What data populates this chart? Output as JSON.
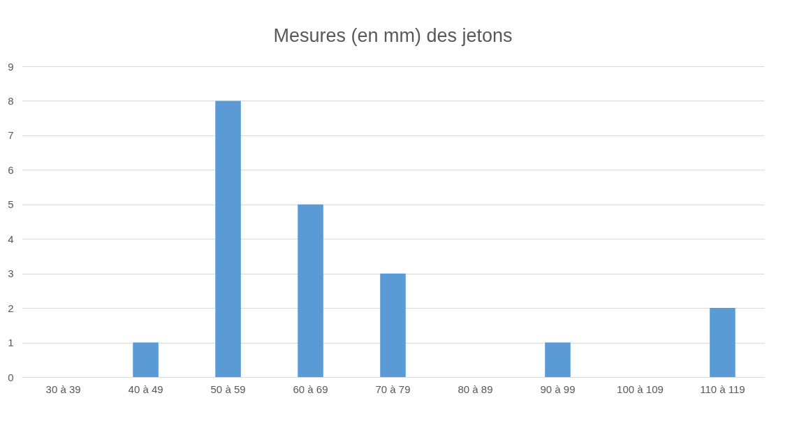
{
  "chart_data": {
    "type": "bar",
    "title": "Mesures (en mm) des jetons",
    "categories": [
      "30 à 39",
      "40 à 49",
      "50 à 59",
      "60 à 69",
      "70 à 79",
      "80 à 89",
      "90 à 99",
      "100 à 109",
      "110 à 119"
    ],
    "values": [
      0,
      1,
      8,
      5,
      3,
      0,
      1,
      0,
      2
    ],
    "color": "#5b9bd5",
    "ylim": [
      0,
      9
    ],
    "yticks": [
      0,
      1,
      2,
      3,
      4,
      5,
      6,
      7,
      8,
      9
    ],
    "grid": "y"
  }
}
